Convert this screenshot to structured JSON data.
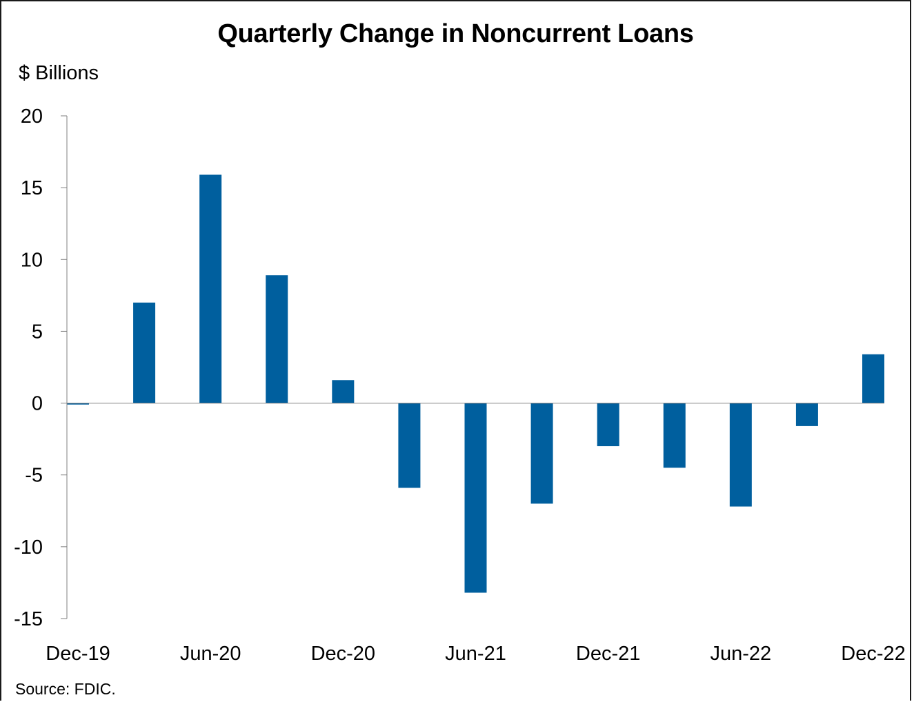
{
  "chart_data": {
    "type": "bar",
    "title": "Quarterly Change in Noncurrent Loans",
    "ylabel": "$ Billions",
    "xlabel": "",
    "ylim": [
      -15,
      20
    ],
    "yticks": [
      20,
      15,
      10,
      5,
      0,
      -5,
      -10,
      -15
    ],
    "categories": [
      "Dec-19",
      "Mar-20",
      "Jun-20",
      "Sep-20",
      "Dec-20",
      "Mar-21",
      "Jun-21",
      "Sep-21",
      "Dec-21",
      "Mar-22",
      "Jun-22",
      "Sep-22",
      "Dec-22"
    ],
    "xtick_labels": [
      "Dec-19",
      "Jun-20",
      "Dec-20",
      "Jun-21",
      "Dec-21",
      "Jun-22",
      "Dec-22"
    ],
    "values": [
      -0.1,
      7.0,
      15.9,
      8.9,
      1.6,
      -5.9,
      -13.2,
      -7.0,
      -3.0,
      -4.5,
      -7.2,
      -1.6,
      3.4
    ],
    "bar_color": "#005f9e",
    "grid": false,
    "legend": "none"
  },
  "source": "Source: FDIC."
}
